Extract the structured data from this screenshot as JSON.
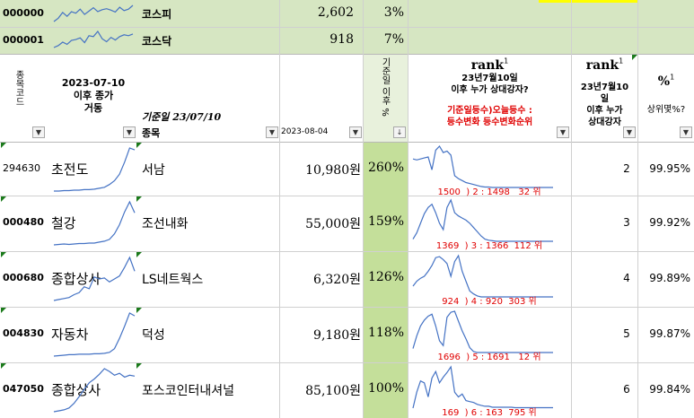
{
  "index_rows": [
    {
      "code": "000000",
      "name": "코스피",
      "value": "2,602",
      "pct": "3%",
      "spark": [
        20,
        34,
        58,
        42,
        61,
        55,
        72,
        50,
        64,
        78,
        62,
        70,
        74,
        68,
        60,
        80,
        66,
        72,
        88
      ]
    },
    {
      "code": "000001",
      "name": "코스닥",
      "value": "918",
      "pct": "7%",
      "spark": [
        15,
        24,
        40,
        30,
        48,
        52,
        60,
        38,
        70,
        66,
        90,
        56,
        42,
        62,
        50,
        66,
        74,
        70,
        78
      ]
    }
  ],
  "headers": {
    "code_col": "종목코드",
    "chart_col": "2023-07-10\n이후 종가\n거동",
    "sector_col": "기준일 23/07/10",
    "name_col": "종목",
    "date_col": "2023-08-04",
    "pct_col": "기준일 이후 %",
    "rankchart_rank": "rank",
    "rankchart_sup": "1",
    "rankchart_sub": "23년7월10일\n이후 누가 상대강자?",
    "rankchart_red": "기준일등수)오늘등수 :\n등수변화 등수변화순위",
    "rank_title": "rank",
    "rank_sup": "1",
    "rank_sub": "23년7월10\n일\n이후 누가\n상대강자",
    "ratio_title": "%",
    "ratio_sup": "1",
    "ratio_sub": "상위몇%?"
  },
  "filter_glyph": "▼",
  "sort_glyph": "↓",
  "rows": [
    {
      "code": "294630",
      "sector": "초전도",
      "name": "서남",
      "price": "10,980원",
      "pct": "260%",
      "rank": "2",
      "ratio": "99.95%",
      "rank_text": "1500  ) 2 : 1498   32 위",
      "price_spark": [
        8,
        8,
        9,
        9,
        10,
        10,
        11,
        11,
        12,
        14,
        16,
        22,
        30,
        44,
        70,
        100,
        96
      ],
      "rank_spark": [
        62,
        60,
        62,
        64,
        66,
        40,
        80,
        88,
        75,
        78,
        70,
        28,
        22,
        18,
        14,
        12,
        10,
        8,
        6,
        5,
        5,
        4,
        4,
        4,
        4,
        4,
        4,
        4,
        4,
        4,
        4,
        4,
        4,
        4,
        4,
        4,
        4,
        4
      ]
    },
    {
      "code": "000480",
      "sector": "철강",
      "name": "조선내화",
      "price": "55,000원",
      "pct": "159%",
      "rank": "3",
      "ratio": "99.92%",
      "rank_text": "1369  ) 3 : 1366  112 위",
      "price_spark": [
        6,
        7,
        8,
        7,
        8,
        9,
        9,
        10,
        10,
        12,
        14,
        18,
        30,
        50,
        78,
        100,
        76
      ],
      "rank_spark": [
        10,
        22,
        40,
        58,
        70,
        76,
        60,
        40,
        28,
        70,
        84,
        60,
        54,
        50,
        46,
        40,
        32,
        24,
        16,
        10,
        8,
        7,
        6,
        6,
        6,
        6,
        6,
        6,
        6,
        6,
        6,
        6,
        6,
        6,
        6,
        6,
        6,
        6
      ]
    },
    {
      "code": "000680",
      "sector": "종합상사",
      "name": "LS네트웍스",
      "price": "6,320원",
      "pct": "126%",
      "rank": "4",
      "ratio": "99.89%",
      "rank_text": "924  ) 4 : 920  303 위",
      "price_spark": [
        12,
        14,
        16,
        18,
        24,
        28,
        40,
        36,
        60,
        56,
        58,
        50,
        56,
        62,
        80,
        100,
        72
      ],
      "rank_spark": [
        30,
        40,
        46,
        50,
        60,
        72,
        88,
        90,
        84,
        76,
        50,
        80,
        92,
        60,
        40,
        20,
        14,
        10,
        8,
        8,
        8,
        8,
        8,
        8,
        8,
        8,
        8,
        8,
        8,
        8,
        8,
        8,
        8,
        8,
        8,
        8,
        8,
        8
      ]
    },
    {
      "code": "004830",
      "sector": "자동차",
      "name": "덕성",
      "price": "9,180원",
      "pct": "118%",
      "rank": "5",
      "ratio": "99.87%",
      "rank_text": "1696  ) 5 : 1691   12 위",
      "price_spark": [
        6,
        7,
        8,
        9,
        9,
        10,
        10,
        10,
        11,
        11,
        12,
        14,
        22,
        44,
        70,
        98,
        92
      ],
      "rank_spark": [
        14,
        40,
        60,
        72,
        80,
        84,
        60,
        30,
        20,
        78,
        88,
        90,
        70,
        50,
        34,
        16,
        8,
        6,
        6,
        6,
        6,
        6,
        6,
        6,
        6,
        6,
        6,
        6,
        6,
        6,
        6,
        6,
        6,
        6,
        6,
        6,
        6,
        6
      ]
    },
    {
      "code": "047050",
      "sector": "종합상사",
      "name": "포스코인터내셔널",
      "price": "85,100원",
      "pct": "100%",
      "rank": "6",
      "ratio": "99.84%",
      "rank_text": "169  ) 6 : 163  795 위",
      "price_spark": [
        8,
        10,
        12,
        16,
        26,
        40,
        56,
        70,
        78,
        88,
        100,
        94,
        86,
        90,
        82,
        86,
        84
      ],
      "rank_spark": [
        6,
        40,
        64,
        60,
        30,
        70,
        84,
        60,
        72,
        82,
        94,
        40,
        30,
        36,
        22,
        20,
        18,
        14,
        12,
        10,
        10,
        8,
        8,
        8,
        8,
        8,
        8,
        7,
        7,
        7,
        7,
        7,
        7,
        7,
        7,
        7,
        7,
        7
      ]
    }
  ],
  "colors": {
    "green_fill": "#d6e6c2",
    "pct_fill": "#c4df9a",
    "yellow_band": "#ffff00",
    "spark_line": "#4472c4",
    "red_text": "#e00000",
    "corner_triangle": "#1b7a1b"
  }
}
